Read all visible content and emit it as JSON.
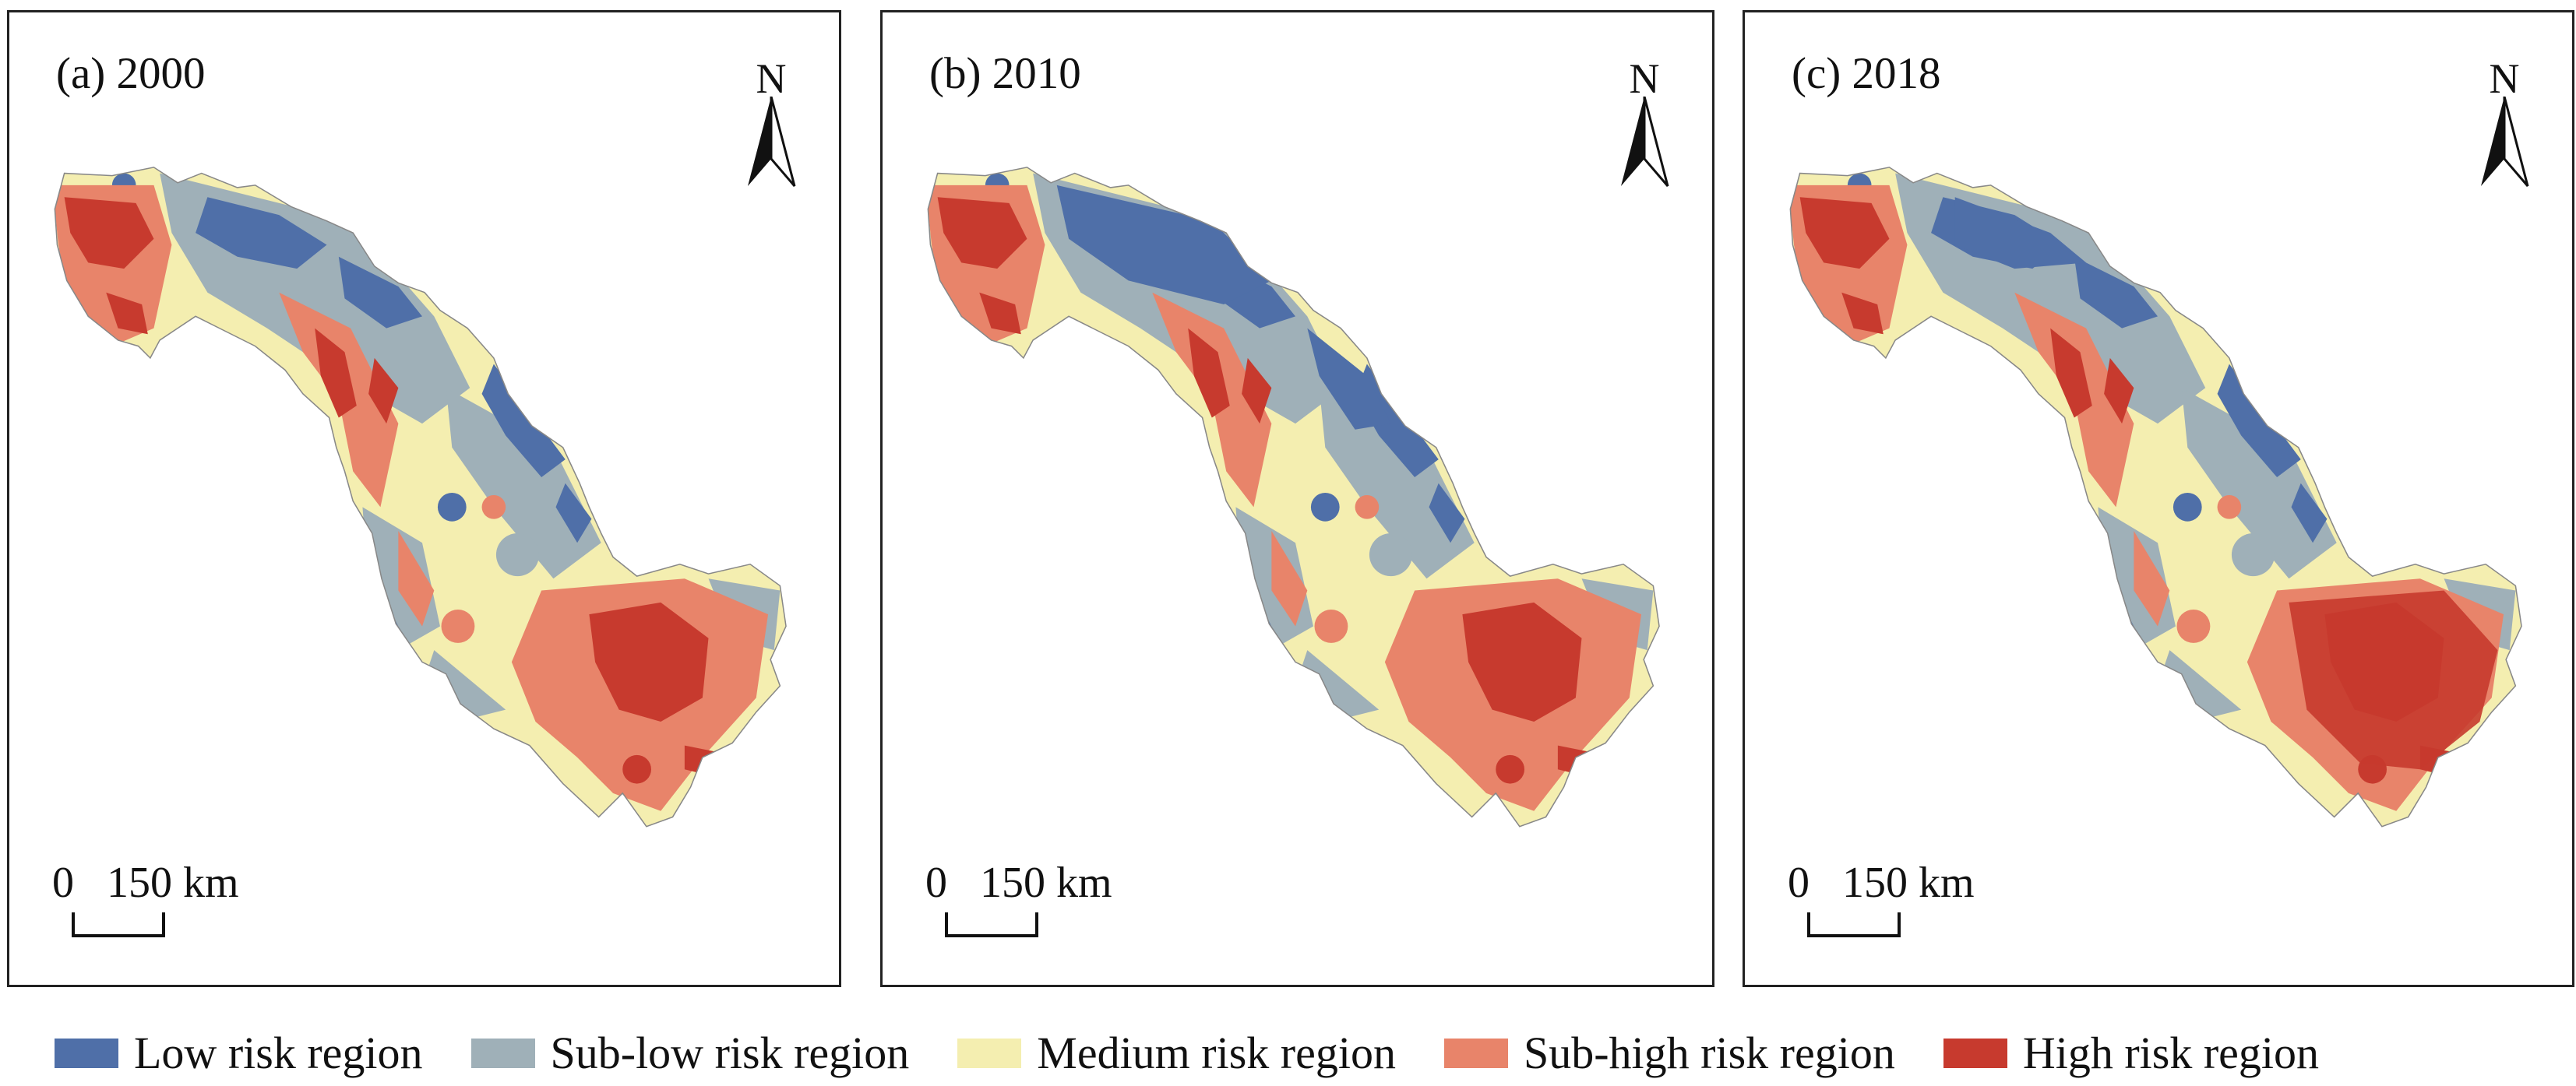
{
  "panels": [
    {
      "label": "(a) 2000",
      "north": "N",
      "scale_zero": "0",
      "scale_distance": "150 km"
    },
    {
      "label": "(b) 2010",
      "north": "N",
      "scale_zero": "0",
      "scale_distance": "150 km"
    },
    {
      "label": "(c) 2018",
      "north": "N",
      "scale_zero": "0",
      "scale_distance": "150 km"
    }
  ],
  "legend": [
    {
      "label": "Low risk region",
      "color": "#4f6fa8"
    },
    {
      "label": "Sub-low risk region",
      "color": "#9fb0b8"
    },
    {
      "label": "Medium risk region",
      "color": "#f4eeb0"
    },
    {
      "label": "Sub-high risk region",
      "color": "#e8846a"
    },
    {
      "label": "High risk region",
      "color": "#c73a2e"
    }
  ],
  "icons": {
    "north_arrow": "north-arrow-icon"
  }
}
